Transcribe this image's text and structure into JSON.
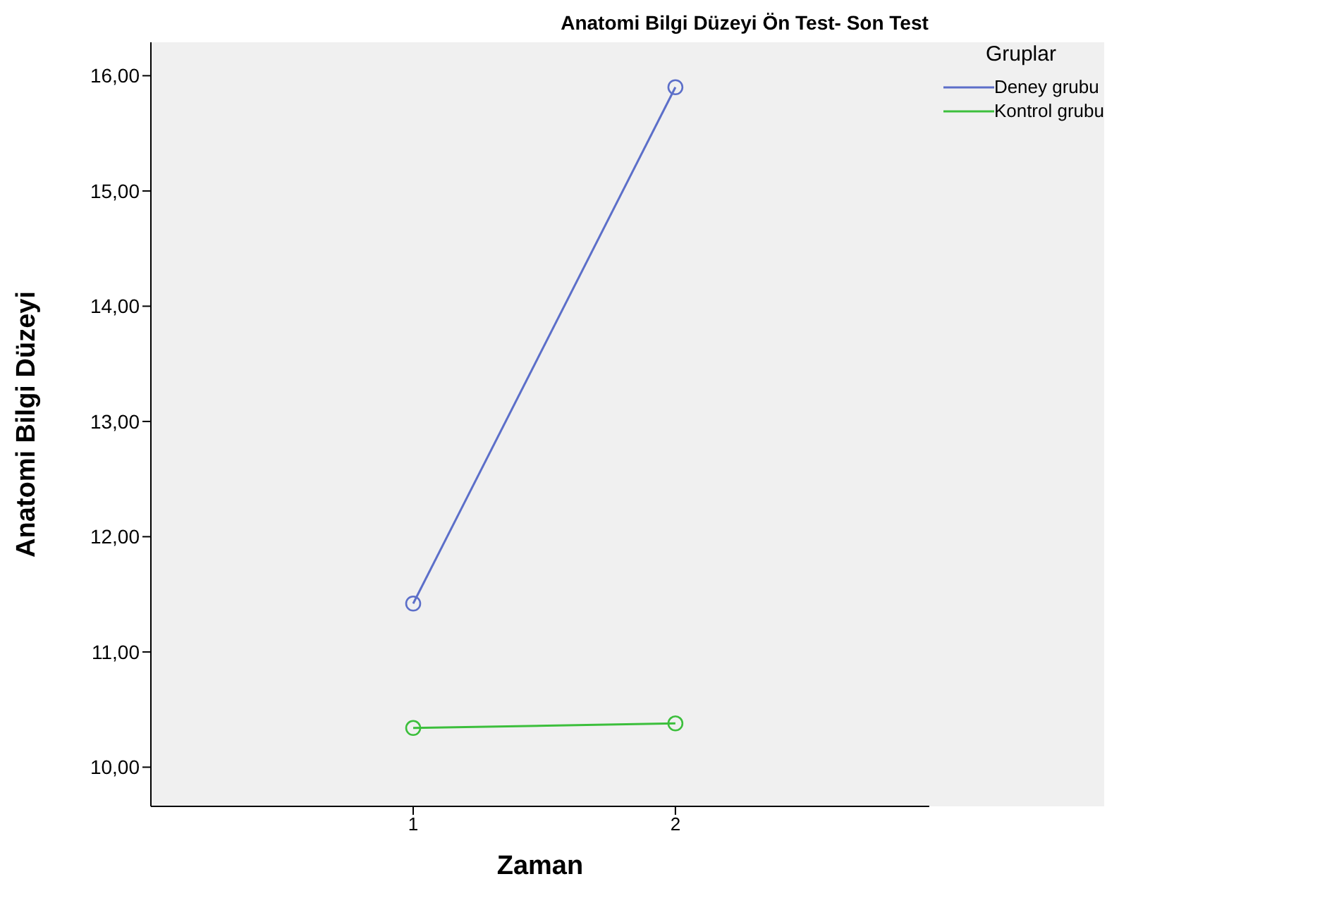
{
  "chart_data": {
    "type": "line",
    "title": "Anatomi Bilgi Düzeyi Ön Test- Son Test",
    "xlabel": "Zaman",
    "ylabel": "Anatomi Bilgi Düzeyi",
    "legend_title": "Gruplar",
    "categories": [
      "1",
      "2"
    ],
    "series": [
      {
        "name": "Deney grubu",
        "color": "#5c6fc9",
        "values": [
          11.42,
          15.9
        ]
      },
      {
        "name": "Kontrol grubu",
        "color": "#3cbf3c",
        "values": [
          10.34,
          10.38
        ]
      }
    ],
    "ylim": [
      9.66,
      16.29
    ],
    "yticks": [
      {
        "value": 10,
        "label": "10,00"
      },
      {
        "value": 11,
        "label": "11,00"
      },
      {
        "value": 12,
        "label": "12,00"
      },
      {
        "value": 13,
        "label": "13,00"
      },
      {
        "value": 14,
        "label": "14,00"
      },
      {
        "value": 15,
        "label": "15,00"
      },
      {
        "value": 16,
        "label": "16,00"
      }
    ],
    "grid": false,
    "legend": "top right",
    "marker": "circle",
    "line_style": "solid"
  }
}
